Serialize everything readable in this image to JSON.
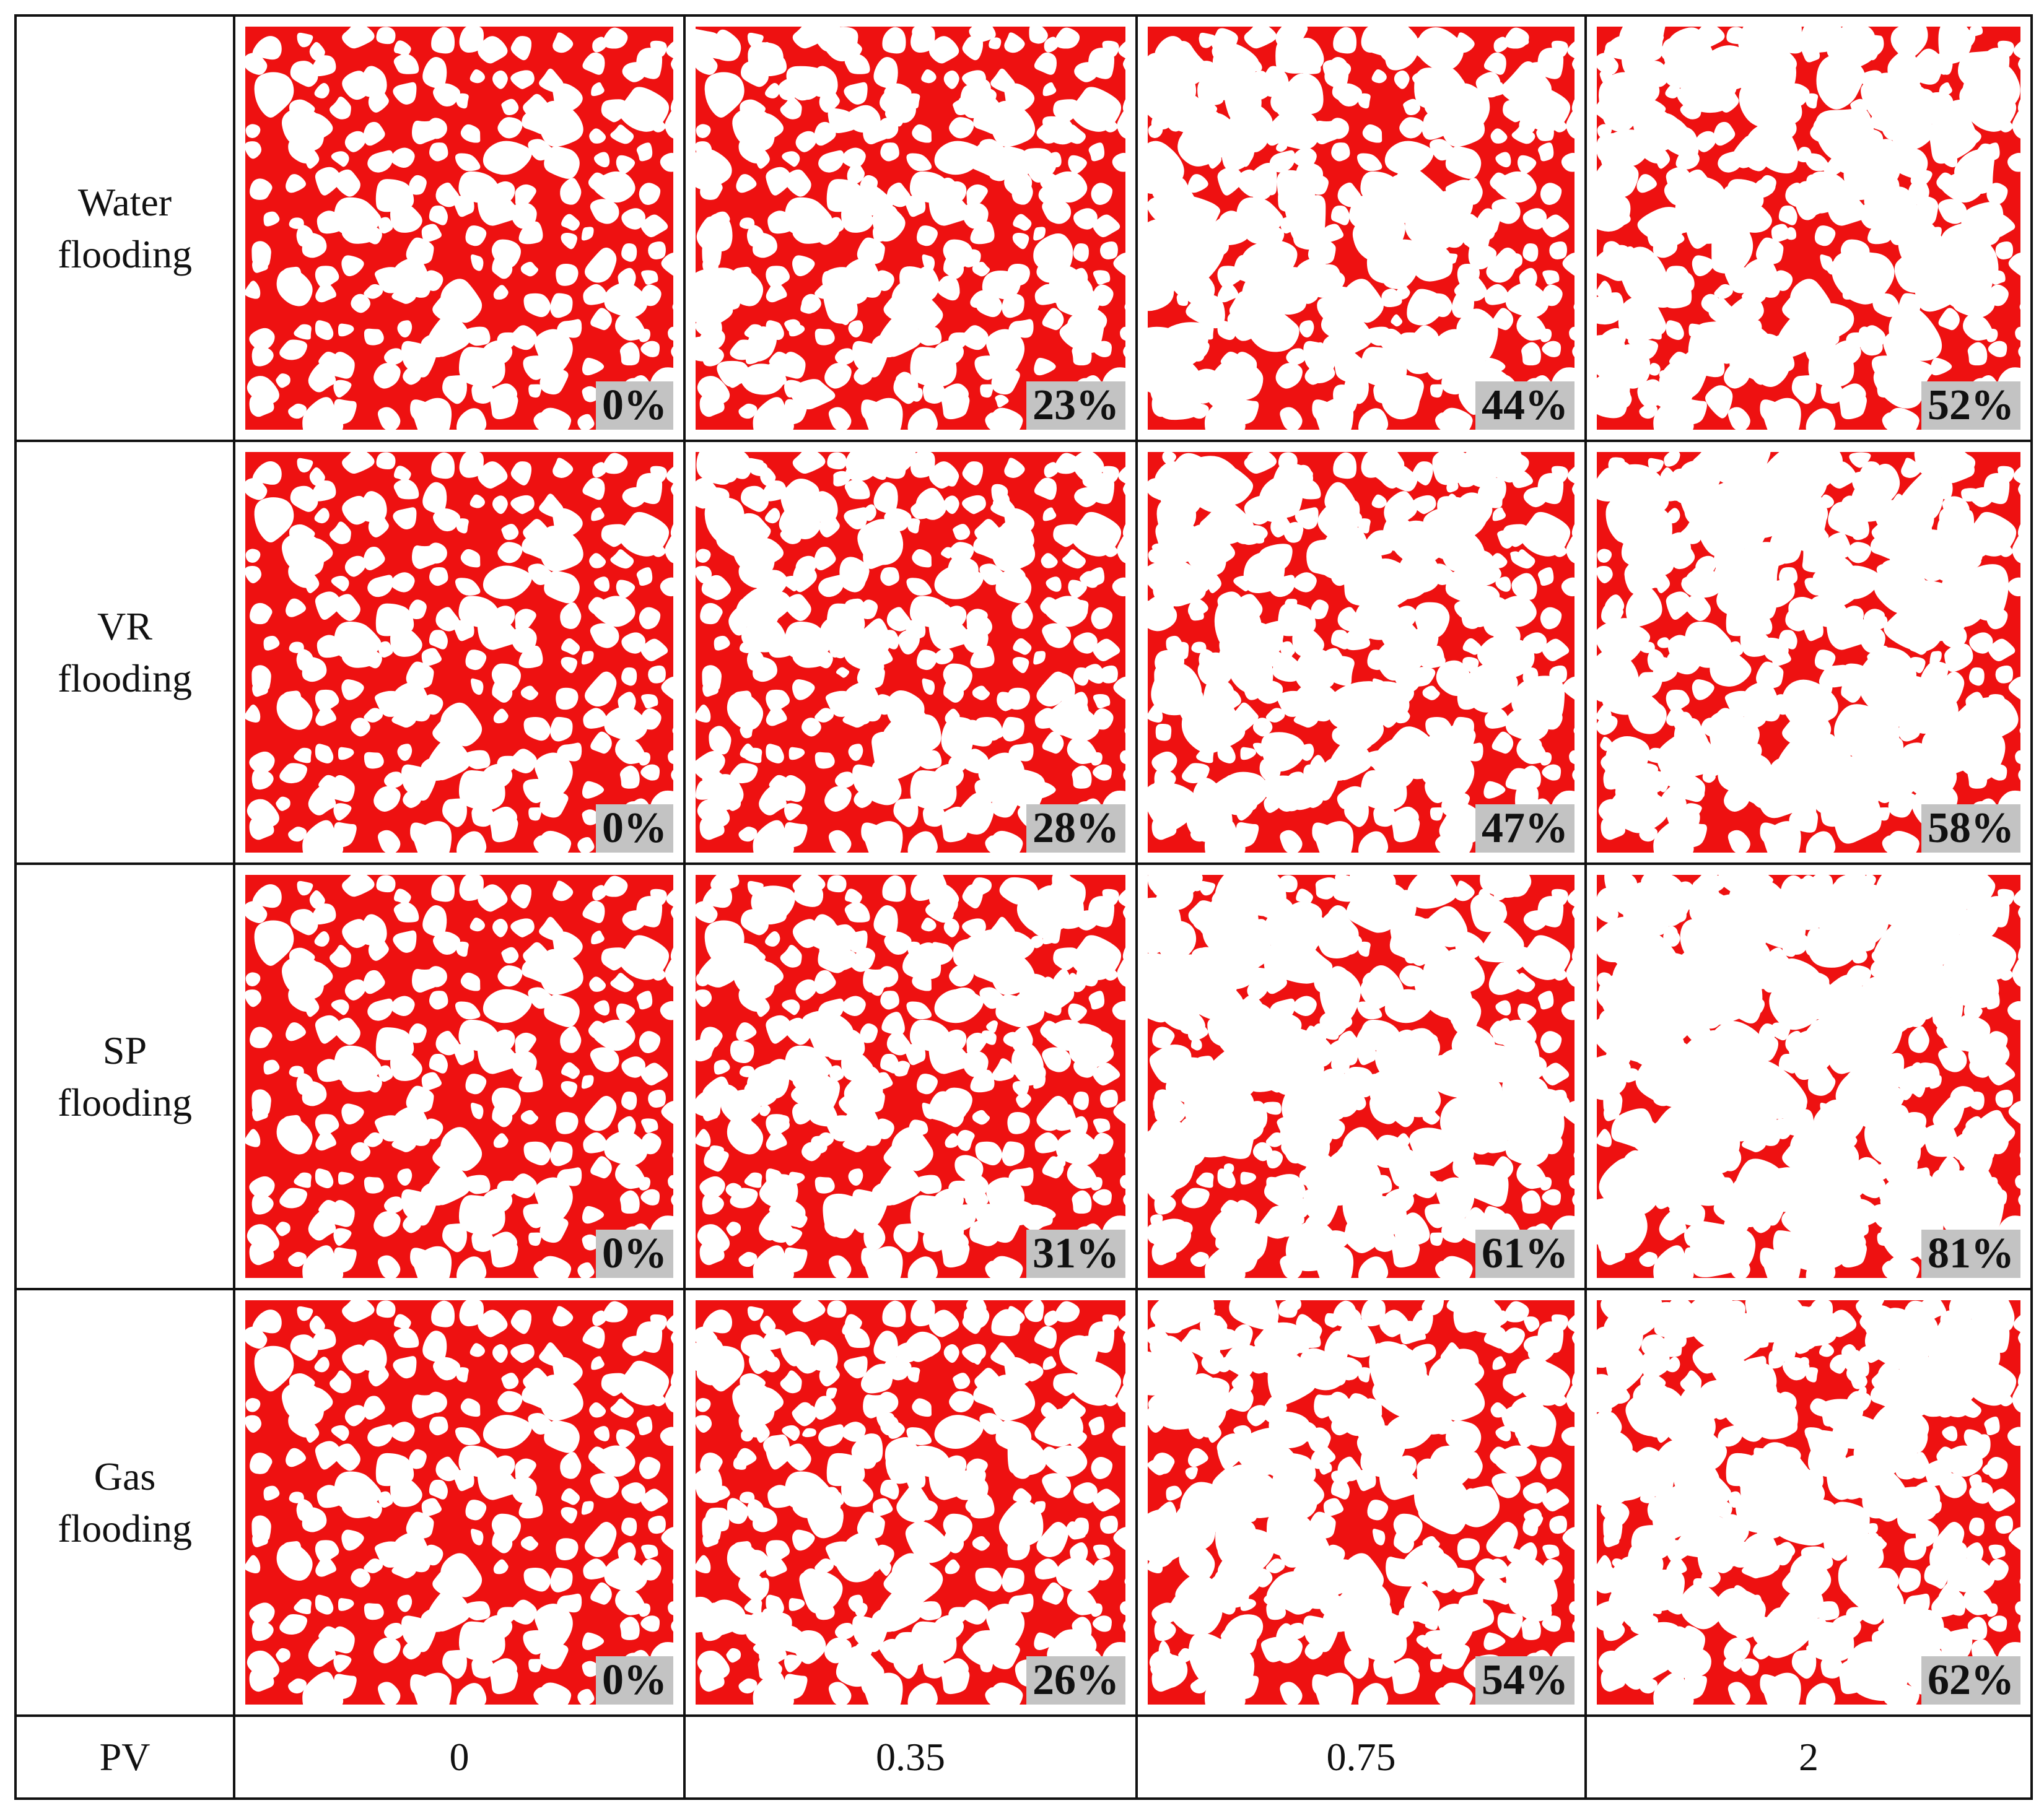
{
  "colors": {
    "oil": "#ee1111",
    "pore_water": "#ffffff",
    "badge_bg": "#c3c3c3",
    "grid_line": "#111111"
  },
  "rows": [
    {
      "line1": "Water",
      "line2": "flooding",
      "recoveries": [
        "0%",
        "23%",
        "44%",
        "52%"
      ],
      "oil_fraction": [
        1.0,
        0.74,
        0.47,
        0.4
      ]
    },
    {
      "line1": "VR",
      "line2": "flooding",
      "recoveries": [
        "0%",
        "28%",
        "47%",
        "58%"
      ],
      "oil_fraction": [
        1.0,
        0.7,
        0.44,
        0.32
      ]
    },
    {
      "line1": "SP",
      "line2": "flooding",
      "recoveries": [
        "0%",
        "31%",
        "61%",
        "81%"
      ],
      "oil_fraction": [
        1.0,
        0.66,
        0.28,
        0.14
      ]
    },
    {
      "line1": "Gas",
      "line2": "flooding",
      "recoveries": [
        "0%",
        "26%",
        "54%",
        "62%"
      ],
      "oil_fraction": [
        1.0,
        0.72,
        0.42,
        0.3
      ]
    }
  ],
  "pv_row": {
    "label": "PV",
    "values": [
      "0",
      "0.35",
      "0.75",
      "2"
    ]
  }
}
